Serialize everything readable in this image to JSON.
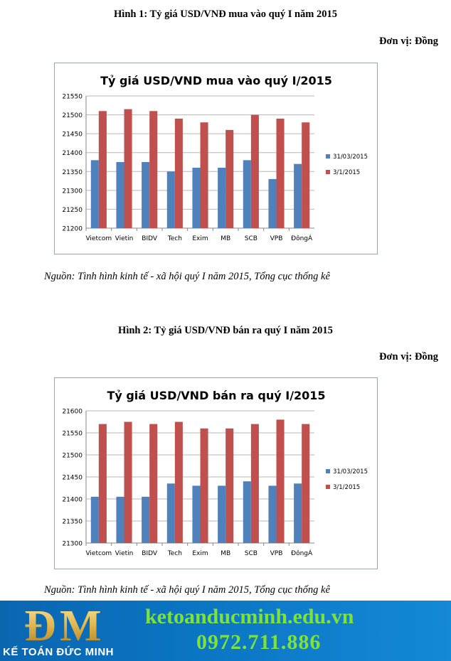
{
  "figure1": {
    "caption": "Hình 1: Tỷ giá USD/VNĐ  mua vào quý I năm 2015",
    "unit": "Đơn vị: Đồng",
    "source": "Nguồn: Tình hình kinh tế - xã hội quý I năm 2015, Tổng cục thống kê"
  },
  "figure2": {
    "caption": "Hình 2: Tỷ giá USD/VNĐ  bán ra quý I năm 2015",
    "unit": "Đơn vị: Đồng",
    "source": "Nguồn: Tình hình kinh tế - xã hội quý I năm 2015, Tổng cục thống kê"
  },
  "banner": {
    "logo_text": "KẾ TOÁN ĐỨC MINH",
    "site_url": "ketoanducminh.edu.vn",
    "phone": "0972.711.886"
  },
  "colors": {
    "series1": "#4f81bd",
    "series2": "#c0504d",
    "gridline": "#b7b7b7",
    "banner_text": "#7ee23a"
  },
  "chart_data": [
    {
      "type": "bar",
      "title": "Tỷ giá USD/VND mua vào quý I/2015",
      "categories": [
        "Vietcom",
        "Vietin",
        "BIDV",
        "Tech",
        "Exim",
        "MB",
        "SCB",
        "VPB",
        "ĐôngÁ"
      ],
      "series": [
        {
          "name": "31/03/2015",
          "values": [
            21380,
            21375,
            21375,
            21350,
            21360,
            21360,
            21380,
            21330,
            21370
          ]
        },
        {
          "name": "3/1/2015",
          "values": [
            21510,
            21515,
            21510,
            21490,
            21480,
            21460,
            21500,
            21490,
            21480
          ]
        }
      ],
      "ylim": [
        21200,
        21550
      ],
      "yticks": [
        21200,
        21250,
        21300,
        21350,
        21400,
        21450,
        21500,
        21550
      ],
      "grid": true,
      "legend": "right"
    },
    {
      "type": "bar",
      "title": "Tỷ giá USD/VND bán ra quý I/2015",
      "categories": [
        "Vietcom",
        "Vietin",
        "BIDV",
        "Tech",
        "Exim",
        "MB",
        "SCB",
        "VPB",
        "ĐôngÁ"
      ],
      "series": [
        {
          "name": "31/03/2015",
          "values": [
            21405,
            21405,
            21405,
            21435,
            21430,
            21430,
            21440,
            21430,
            21435
          ]
        },
        {
          "name": "3/1/2015",
          "values": [
            21570,
            21575,
            21570,
            21575,
            21560,
            21560,
            21570,
            21580,
            21570
          ]
        }
      ],
      "ylim": [
        21300,
        21600
      ],
      "yticks": [
        21300,
        21350,
        21400,
        21450,
        21500,
        21550,
        21600
      ],
      "grid": true,
      "legend": "right"
    }
  ]
}
